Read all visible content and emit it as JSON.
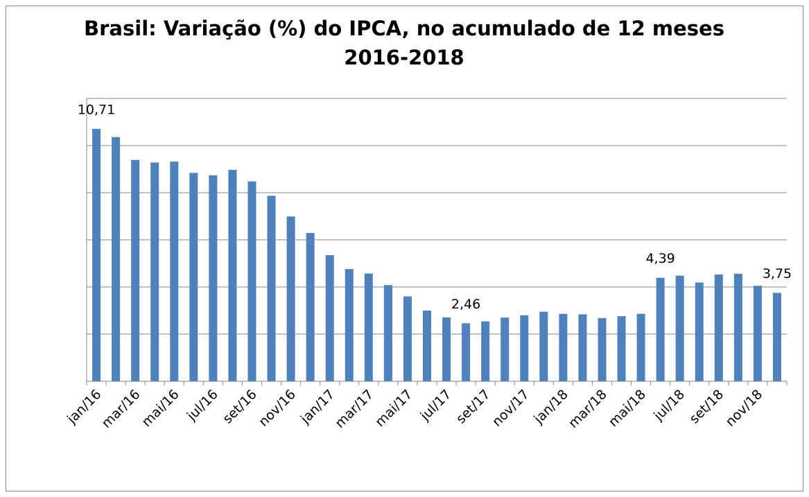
{
  "chart_data": {
    "type": "bar",
    "title": "Brasil: Variação (%) do IPCA, no acumulado de 12 meses",
    "subtitle": "2016-2018",
    "categories": [
      "jan/16",
      null,
      "mar/16",
      null,
      "mai/16",
      null,
      "jul/16",
      null,
      "set/16",
      null,
      "nov/16",
      null,
      "jan/17",
      null,
      "mar/17",
      null,
      "mai/17",
      null,
      "jul/17",
      null,
      "set/17",
      null,
      "nov/17",
      null,
      "jan/18",
      null,
      "mar/18",
      null,
      "mai/18",
      null,
      "jul/18",
      null,
      "set/18",
      null,
      "nov/18",
      null
    ],
    "values": [
      10.71,
      10.36,
      9.39,
      9.28,
      9.32,
      8.84,
      8.74,
      8.97,
      8.48,
      7.87,
      6.99,
      6.29,
      5.35,
      4.76,
      4.57,
      4.08,
      3.6,
      3.0,
      2.71,
      2.46,
      2.54,
      2.7,
      2.8,
      2.95,
      2.86,
      2.84,
      2.68,
      2.76,
      2.86,
      4.39,
      4.48,
      4.19,
      4.53,
      4.56,
      4.05,
      3.75
    ],
    "value_labels": [
      "10,71",
      null,
      null,
      null,
      null,
      null,
      null,
      null,
      null,
      null,
      null,
      null,
      null,
      null,
      null,
      null,
      null,
      null,
      null,
      "2,46",
      null,
      null,
      null,
      null,
      null,
      null,
      null,
      null,
      null,
      "4,39",
      null,
      null,
      null,
      null,
      null,
      "3,75"
    ],
    "color": "#4f81bd",
    "ylim": [
      0,
      12
    ],
    "yticks": [
      0,
      2,
      4,
      6,
      8,
      10,
      12
    ],
    "grid": true
  }
}
